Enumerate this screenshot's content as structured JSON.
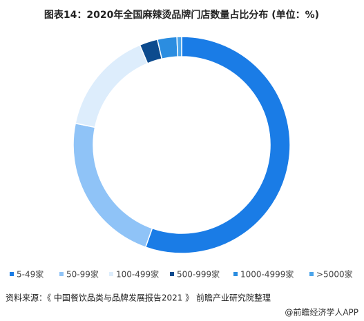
{
  "chart_data": {
    "type": "donut",
    "title": "图表14：2020年全国麻辣烫品牌门店数量占比分布 (单位：%)",
    "categories": [
      "5-49家",
      "50-99家",
      "100-499家",
      "500-999家",
      "1000-4999家",
      ">5000家"
    ],
    "values": [
      55.4,
      22.8,
      15.5,
      2.7,
      2.9,
      0.7
    ],
    "colors": [
      "#1a7ce6",
      "#8fc3f7",
      "#ddedfc",
      "#0d4b8e",
      "#2b8de0",
      "#4ba4ea"
    ],
    "source": "资料来源：《 中国餐饮品类与品牌发展报告2021 》 前瞻产业研究院整理",
    "brand": "@前瞻经济学人APP"
  }
}
